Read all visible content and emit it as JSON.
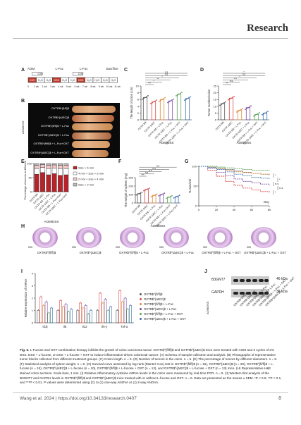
{
  "header": {
    "section": "Research"
  },
  "panelA": {
    "label": "A",
    "top_labels": [
      "AOM",
      "L-Fuc",
      "L-Fuc",
      "Sacrifice"
    ],
    "boxes": [
      "DSS",
      "H₂O",
      "H₂O",
      "DSS",
      "H₂O",
      "H₂O",
      "DSS",
      "H₂O",
      "H₂O",
      "H₂O",
      "H₂O"
    ],
    "week_labels": [
      "0",
      "1 wk",
      "2 wk",
      "3 wk",
      "4 wk",
      "5 wk",
      "6 wk",
      "7 wk",
      "8 wk",
      "9 wk",
      "10 wk",
      "11 wk"
    ],
    "oxt_labels": [
      "OXT",
      "OXT"
    ]
  },
  "panelB": {
    "label": "B",
    "rows": [
      "OXTR$^{fl/fl}$",
      "OXTR$^{ΔIEC}$",
      "OXTR$^{fl/fl}$ + L-Fuc",
      "OXTR$^{ΔIEC}$ + L-Fuc",
      "OXTR$^{fl/fl}$ + L-Fuc+OXT",
      "OXTR$^{ΔIEC}$ + L-Fuc+OXT"
    ],
    "side_label": "AOM/DSS"
  },
  "panelC": {
    "label": "C",
    "ylabel": "The length of colon (cm)",
    "xlabel": "AOM/DSS",
    "chart_data": {
      "type": "bar",
      "categories": [
        "OXTR fl/fl",
        "OXTR ΔIEC",
        "OXTR fl/fl + L-Fuc",
        "OXTR ΔIEC + L-Fuc",
        "OXTR fl/fl + L-Fuc + OXT",
        "OXTR ΔIEC + L-Fuc + OXT"
      ],
      "values": [
        6.6,
        5.3,
        6.0,
        5.6,
        7.6,
        6.3
      ],
      "ylim": [
        0,
        10
      ],
      "yticks": [
        0,
        2,
        4,
        6,
        8,
        10
      ]
    },
    "sig": [
      "***",
      "*",
      "**",
      "*",
      "n.s",
      "n.s"
    ]
  },
  "panelD": {
    "label": "D",
    "ylabel": "Tumor number/colon",
    "xlabel": "AOM/DSS",
    "chart_data": {
      "type": "bar",
      "categories": [
        "OXTR fl/fl",
        "OXTR ΔIEC",
        "OXTR fl/fl + L-Fuc",
        "OXTR ΔIEC + L-Fuc",
        "OXTR fl/fl + L-Fuc + OXT",
        "OXTR ΔIEC + L-Fuc + OXT"
      ],
      "values": [
        12,
        16,
        7,
        9,
        4,
        5
      ],
      "ylim": [
        0,
        25
      ],
      "yticks": [
        0,
        5,
        10,
        15,
        20,
        25
      ]
    },
    "sig": [
      "**",
      "n.s",
      "***",
      "*",
      "n.s",
      "*"
    ]
  },
  "panelE": {
    "label": "E",
    "ylabel": "Percentage of tumors in different size",
    "xlabel": "AOM/DSS",
    "legend": [
      "Size > 6 mm",
      "4 mm < size > 6 mm",
      "2 mm < size > 4 mm",
      "Size > 2 mm"
    ],
    "chart_data": {
      "type": "bar",
      "categories": [
        "OXTR fl/fl",
        "OXTR ΔIEC",
        "OXTR fl/fl + L-Fuc",
        "OXTR ΔIEC + L-Fuc",
        "OXTR fl/fl + L-Fuc+OXT",
        "OXTR ΔIEC + L-Fuc+OXT"
      ],
      "series": [
        {
          "name": "Size > 6 mm",
          "values": [
            62,
            68,
            60,
            64,
            58,
            60
          ]
        },
        {
          "name": "4 mm < size > 6 mm",
          "values": [
            20,
            18,
            22,
            20,
            24,
            22
          ]
        },
        {
          "name": "2 mm < size > 4 mm",
          "values": [
            12,
            10,
            12,
            11,
            12,
            12
          ]
        },
        {
          "name": "Size > 2 mm",
          "values": [
            6,
            4,
            6,
            5,
            6,
            6
          ]
        }
      ],
      "ylim": [
        0,
        100
      ],
      "yticks": [
        0,
        50,
        100
      ]
    }
  },
  "panelF": {
    "label": "F",
    "ylabel": "The weight of spleen (mg)",
    "xlabel": "AOM/DSS",
    "chart_data": {
      "type": "bar",
      "categories": [
        "OXTR fl/fl",
        "OXTR ΔIEC",
        "OXTR fl/fl + L-Fuc",
        "OXTR ΔIEC + L-Fuc",
        "OXTR fl/fl + L-Fuc+OXT",
        "OXTR ΔIEC + L-Fuc+OXT"
      ],
      "values": [
        110,
        160,
        90,
        100,
        70,
        75
      ],
      "ylim": [
        0,
        300
      ],
      "yticks": [
        0,
        100,
        200,
        300
      ]
    },
    "sig": [
      "***",
      "n.s",
      "n.s",
      "n.s",
      "n.s"
    ]
  },
  "panelG": {
    "label": "G",
    "ylabel": "% Survival",
    "xlabel": "Day",
    "chart_data": {
      "type": "line",
      "xlim": [
        0,
        80
      ],
      "ylim": [
        0,
        100
      ],
      "xticks": [
        0,
        20,
        40,
        60,
        80
      ],
      "yticks": [
        0,
        50,
        100
      ],
      "series": [
        {
          "color": "#555555",
          "x": [
            0,
            10,
            20,
            30,
            40,
            50,
            60,
            70,
            80
          ],
          "y": [
            100,
            100,
            95,
            92,
            88,
            85,
            82,
            80,
            78
          ]
        },
        {
          "color": "#d94a4a",
          "x": [
            0,
            10,
            20,
            30,
            40,
            50,
            60,
            70,
            80
          ],
          "y": [
            100,
            90,
            75,
            62,
            52,
            45,
            40,
            36,
            32
          ]
        },
        {
          "color": "#e08a3a",
          "x": [
            0,
            10,
            20,
            30,
            40,
            50,
            60,
            70,
            80
          ],
          "y": [
            100,
            98,
            94,
            90,
            86,
            84,
            82,
            80,
            79
          ]
        },
        {
          "color": "#7a4fa0",
          "x": [
            0,
            10,
            20,
            30,
            40,
            50,
            60,
            70,
            80
          ],
          "y": [
            100,
            95,
            85,
            76,
            68,
            62,
            58,
            55,
            52
          ]
        },
        {
          "color": "#5ea35a",
          "x": [
            0,
            10,
            20,
            30,
            40,
            50,
            60,
            70,
            80
          ],
          "y": [
            100,
            100,
            98,
            96,
            94,
            92,
            90,
            90,
            89
          ]
        },
        {
          "color": "#3b6fb0",
          "x": [
            0,
            10,
            20,
            30,
            40,
            50,
            60,
            70,
            80
          ],
          "y": [
            100,
            97,
            92,
            86,
            80,
            76,
            72,
            70,
            68
          ]
        }
      ]
    },
    "sig": [
      "*",
      "*",
      "n.s",
      "n.s",
      "*"
    ]
  },
  "panelH": {
    "label": "H",
    "captions": [
      "OXTR$^{fl/fl}$",
      "OXTR$^{ΔIEC}$",
      "OXTR$^{fl/fl}$ + L-Fuc",
      "OXTR$^{ΔIEC}$ + L-Fuc",
      "OXTR$^{fl/fl}$ + L-Fuc + OXT",
      "OXTR$^{ΔIEC}$ + L-Fuc + OXT"
    ]
  },
  "panelI": {
    "label": "I",
    "ylabel": "Relative expression of mRNA",
    "legend": [
      "OXTR$^{fl/fl}$",
      "OXTR$^{ΔIEC}$",
      "OXTR$^{fl/fl}$ + L-Fuc",
      "OXTR$^{ΔIEC}$ + L-Fuc",
      "OXTR$^{fl/fl}$ + L-Fuc + OXT",
      "OXTR$^{ΔIEC}$ + L-Fuc + OXT"
    ],
    "chart_data": {
      "type": "bar",
      "categories": [
        "Il1β",
        "Il6",
        "Il12",
        "Ifn-γ",
        "Tnf-α"
      ],
      "series": [
        {
          "values": [
            1.0,
            1.0,
            1.0,
            1.0,
            1.0
          ]
        },
        {
          "values": [
            2.1,
            1.8,
            1.6,
            2.4,
            2.6
          ]
        },
        {
          "values": [
            1.4,
            1.3,
            1.2,
            1.6,
            1.7
          ]
        },
        {
          "values": [
            1.7,
            1.5,
            1.4,
            1.9,
            2.0
          ]
        },
        {
          "values": [
            0.8,
            0.9,
            0.7,
            1.0,
            1.1
          ]
        },
        {
          "values": [
            1.2,
            1.1,
            1.0,
            1.3,
            1.4
          ]
        }
      ],
      "ylim": [
        0,
        4
      ],
      "yticks": [
        0,
        1,
        2,
        3,
        4
      ]
    }
  },
  "panelJ": {
    "label": "J",
    "bands": [
      "B3GNT7",
      "GAPDH"
    ],
    "kda": [
      "46 kDa",
      "36 kDa"
    ],
    "side_label": "AOM/DSS",
    "lanes": [
      "OXTR$^{fl/fl}$",
      "OXTR$^{ΔIEC}$",
      "OXTR$^{fl/fl}$ + L-Fuc",
      "OXTR$^{ΔIEC}$ + L-Fuc",
      "OXTR$^{fl/fl}$ + L-Fuc + OXT",
      "OXTR$^{ΔIEC}$ + L-Fuc + OXT"
    ]
  },
  "caption": {
    "title": "Fig. 5.",
    "text": "L-Fucose and OXT combination therapy inhibits the growth of colon carcinoma tumor. OXTR$^{fl/fl}$ and OXTR$^{ΔIEC}$ mice were treated with AOM and 3 cycles of 2% DSS. DSS + L-fucose, or DSS + L-fucose + OXT to induce inflammation-driven colorectal cancer. (A) Schema of sample collection and analysis. (B) Photographs of representative tumor blocks collected from different treatment groups. (C) Colon length. n = 5. (D) Number of tumors in the colon. n = 5. (E) The percentage of tumors by different diameters. n = 5. (F) Statistical analysis of spleen weight. n = 5. (G) Survival curve assessed by log-rank (Mantel–Cox) test in OXTR$^{fl/fl}$ (n = 15), OXTR$^{ΔIEC}$ (n = 20), OXTR$^{fl/fl}$ + L-fucose (n = 15), OXTR$^{ΔIEC}$ + L-fucose (n = 10), OXTR$^{fl/fl}$ + L-fucose + OXT (n = 12), and OXTR$^{ΔIEC}$ + L-fucose + OXT (n = 13) mice. (H) Representative H&E stained colon sections. Scale bars, 1 mm. (I) Relative inflammatory cytokine mRNA levels in the colon were measured by real-time PCR. n = 5. (J) Western blot analysis of the B3GNT7 and GAPDH levels in OXTR$^{fl/fl}$ and OXTR$^{ΔIEC}$ mice treated with or without L-fucose and OXT. n = 5. Data are presented as the means ± SEM. *P < 0.5; **P < 0.1, and ***P < 0.01. P values were determined using (C) to (J) one-way ANOVA or (J) 2-way ANOVA."
  },
  "footer": {
    "citation": "Wang et al. 2024 | https://doi.org/10.34133/research.0407",
    "page": "8"
  },
  "colors": {
    "red": "#d94a4a",
    "orange": "#e08a3a",
    "purple": "#7a4fa0",
    "green": "#5ea35a",
    "blue": "#3b6fb0",
    "gray": "#555555",
    "stack": [
      "#b8232a",
      "#ffffff",
      "#f4c6c6",
      "#bbbbbb"
    ]
  }
}
